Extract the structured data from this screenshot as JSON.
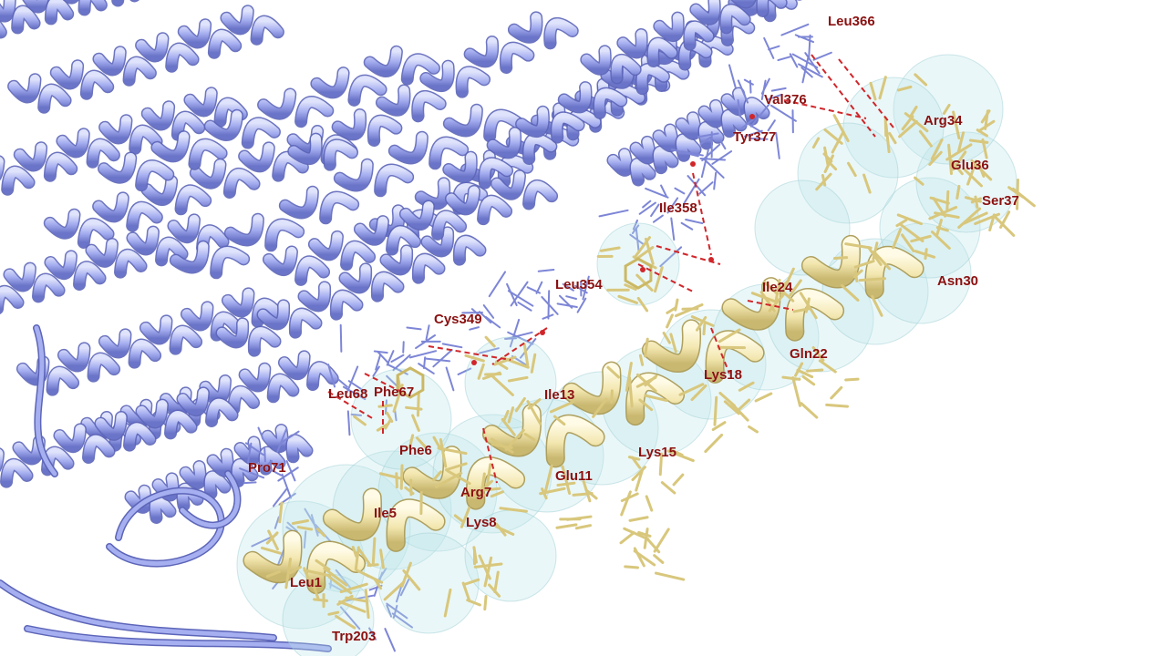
{
  "scene": {
    "receptor_color": "#a6aff0",
    "receptor_shade": "#6a74c8",
    "peptide_color": "#f3e7b0",
    "peptide_shade": "#c9b870",
    "surface_color": "#bfe6e8",
    "contact_color": "#d0262a",
    "label_color": "#8b1010",
    "background": "#ffffff"
  },
  "labels": {
    "leu366": "Leu366",
    "val376": "Val376",
    "arg34": "Arg34",
    "tyr377": "Tyr377",
    "glu36": "Glu36",
    "ser37": "Ser37",
    "ile358": "Ile358",
    "asn30": "Asn30",
    "leu354": "Leu354",
    "ile24": "Ile24",
    "cys349": "Cys349",
    "gln22": "Gln22",
    "lys18": "Lys18",
    "leu68": "Leu68",
    "phe67": "Phe67",
    "ile13": "Ile13",
    "phe6": "Phe6",
    "lys15": "Lys15",
    "pro71": "Pro71",
    "glu11": "Glu11",
    "arg7": "Arg7",
    "ile5": "Ile5",
    "lys8": "Lys8",
    "leu1": "Leu1",
    "trp203": "Trp203"
  }
}
